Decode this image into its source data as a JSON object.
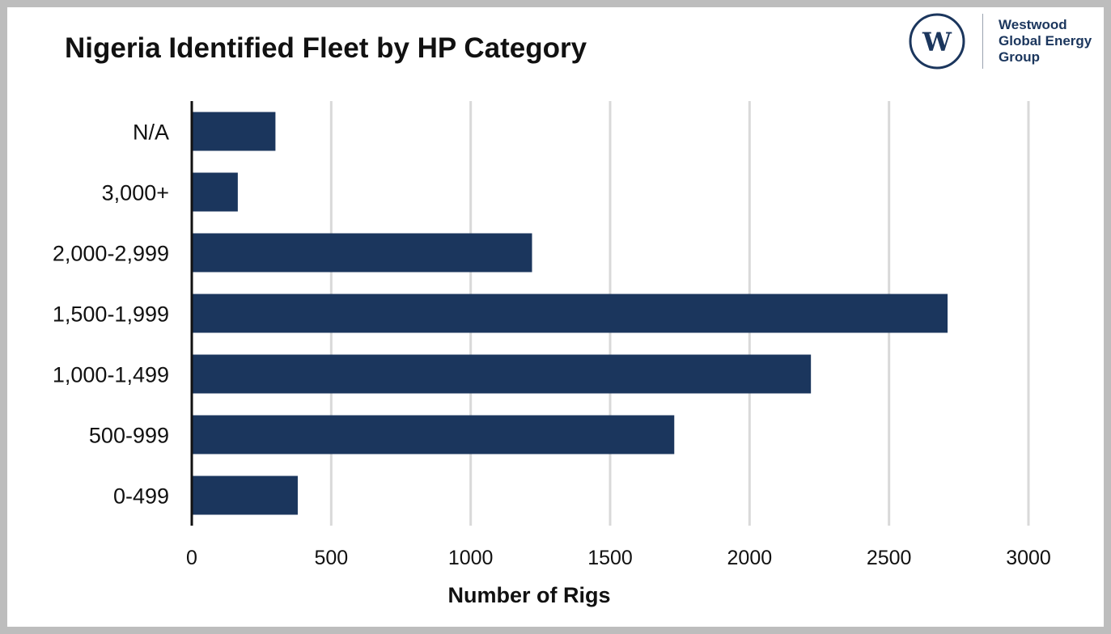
{
  "chart_data": {
    "type": "bar",
    "orientation": "horizontal",
    "title": "Nigeria Identified Fleet by HP Category",
    "xlabel": "Number of Rigs",
    "ylabel": "",
    "categories": [
      "N/A",
      "3,000+",
      "2,000-2,999",
      "1,500-1,999",
      "1,000-1,499",
      "500-999",
      "0-499"
    ],
    "values": [
      300,
      165,
      1220,
      2710,
      2220,
      1730,
      380
    ],
    "xlim": [
      0,
      3000
    ],
    "xticks": [
      "0",
      "500",
      "1000",
      "1500",
      "2000",
      "2500",
      "3000"
    ],
    "grid": "vertical",
    "bar_color": "#1b365d",
    "grid_color": "#d9d9d9"
  },
  "logo": {
    "mark_letter": "W",
    "lines": [
      "Westwood",
      "Global Energy",
      "Group"
    ],
    "color": "#1b365d"
  }
}
